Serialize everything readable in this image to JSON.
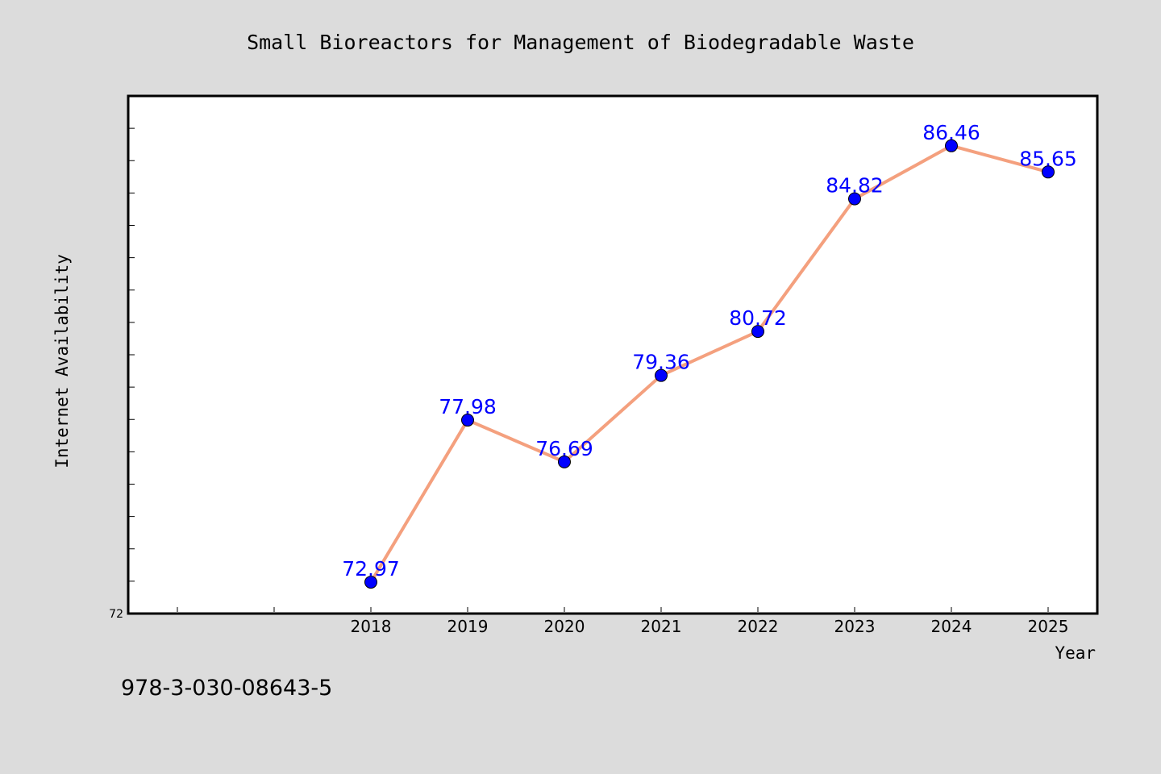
{
  "chart_data": {
    "type": "line",
    "title": "Small Bioreactors for Management of Biodegradable Waste",
    "xlabel": "Year",
    "ylabel": "Internet Availability",
    "categories": [
      "2018",
      "2019",
      "2020",
      "2021",
      "2022",
      "2023",
      "2024",
      "2025"
    ],
    "values": [
      72.97,
      77.98,
      76.69,
      79.36,
      80.72,
      84.82,
      86.46,
      85.65
    ],
    "data_labels": [
      "72.97",
      "77.98",
      "76.69",
      "79.36",
      "80.72",
      "84.82",
      "86.46",
      "85.65"
    ],
    "ylim": [
      72,
      88
    ],
    "y_tick_labels": [
      {
        "value": 72,
        "label": "72"
      }
    ],
    "grid": false,
    "line_color": "#f4a07e",
    "marker_color": "#0000ff",
    "label_color": "#0000ff",
    "plot_background": "#ffffff",
    "page_background": "#dcdcdc"
  },
  "caption": "978-3-030-08643-5"
}
